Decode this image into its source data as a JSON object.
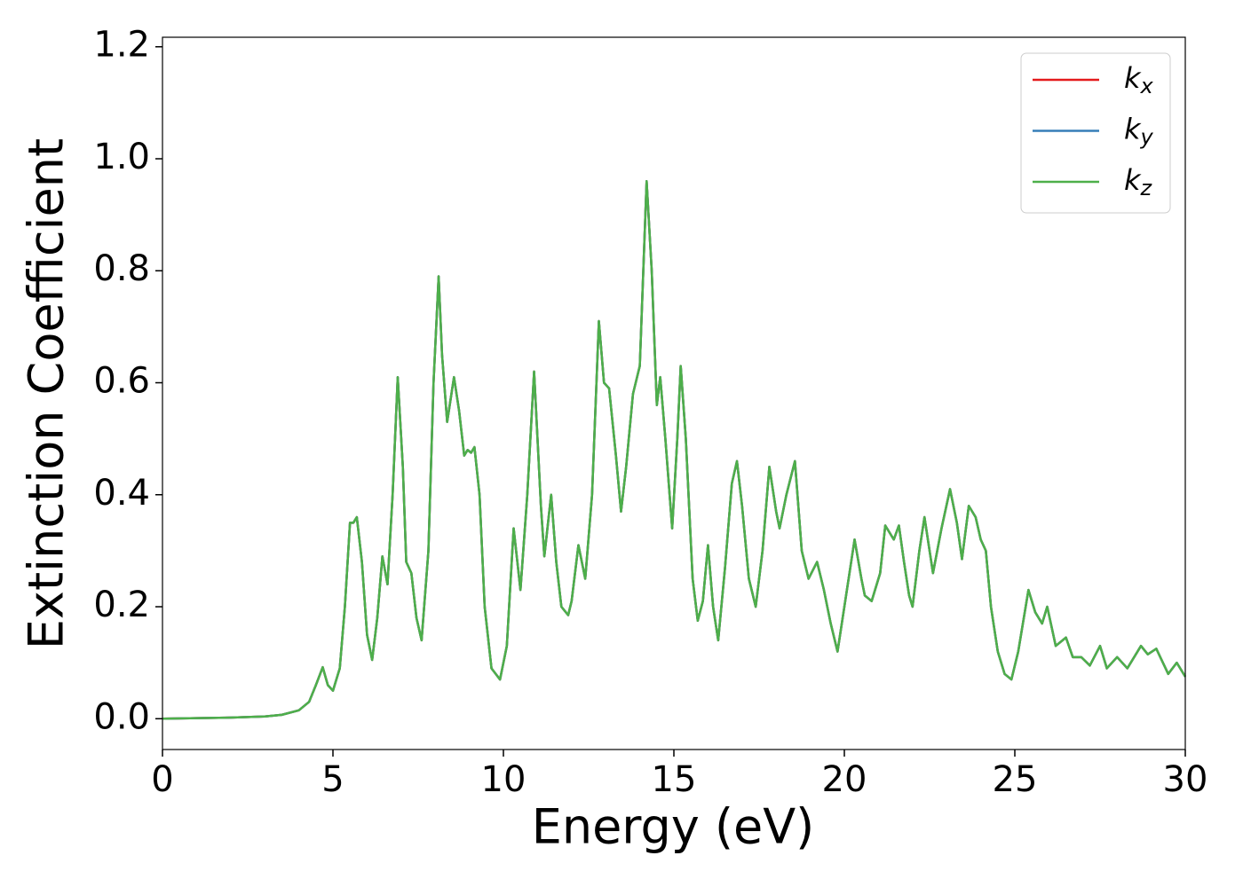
{
  "chart_data": {
    "type": "line",
    "xlabel": "Energy (eV)",
    "ylabel": "Extinction Coefficient",
    "x": [
      0,
      1,
      2,
      3,
      3.5,
      4.0,
      4.3,
      4.5,
      4.7,
      4.85,
      5.0,
      5.2,
      5.35,
      5.5,
      5.6,
      5.7,
      5.85,
      6.0,
      6.15,
      6.3,
      6.45,
      6.6,
      6.75,
      6.9,
      7.05,
      7.15,
      7.3,
      7.45,
      7.6,
      7.8,
      7.95,
      8.1,
      8.2,
      8.35,
      8.55,
      8.7,
      8.85,
      8.95,
      9.05,
      9.15,
      9.3,
      9.45,
      9.65,
      9.9,
      10.1,
      10.3,
      10.5,
      10.7,
      10.9,
      11.1,
      11.2,
      11.4,
      11.55,
      11.7,
      11.9,
      12.0,
      12.2,
      12.4,
      12.6,
      12.8,
      12.95,
      13.1,
      13.3,
      13.45,
      13.6,
      13.8,
      14.0,
      14.2,
      14.35,
      14.5,
      14.6,
      14.75,
      14.95,
      15.1,
      15.2,
      15.35,
      15.55,
      15.7,
      15.85,
      16.0,
      16.15,
      16.3,
      16.5,
      16.7,
      16.85,
      17.0,
      17.2,
      17.4,
      17.6,
      17.8,
      18.0,
      18.1,
      18.3,
      18.55,
      18.75,
      18.95,
      19.2,
      19.4,
      19.6,
      19.8,
      20.0,
      20.3,
      20.5,
      20.6,
      20.8,
      21.05,
      21.2,
      21.45,
      21.6,
      21.75,
      21.9,
      22.0,
      22.2,
      22.35,
      22.5,
      22.6,
      22.85,
      23.1,
      23.3,
      23.45,
      23.65,
      23.85,
      24.0,
      24.15,
      24.3,
      24.5,
      24.7,
      24.9,
      25.1,
      25.4,
      25.6,
      25.8,
      25.95,
      26.2,
      26.5,
      26.7,
      26.95,
      27.2,
      27.5,
      27.7,
      28.0,
      28.3,
      28.7,
      28.9,
      29.15,
      29.5,
      29.75,
      30.0
    ],
    "series": [
      {
        "name": "kx",
        "color": "#e41a1c",
        "values": [
          0,
          0.001,
          0.002,
          0.004,
          0.007,
          0.015,
          0.03,
          0.06,
          0.092,
          0.06,
          0.05,
          0.09,
          0.2,
          0.35,
          0.35,
          0.36,
          0.28,
          0.15,
          0.105,
          0.18,
          0.29,
          0.24,
          0.4,
          0.61,
          0.45,
          0.28,
          0.26,
          0.18,
          0.14,
          0.3,
          0.6,
          0.79,
          0.65,
          0.53,
          0.61,
          0.55,
          0.47,
          0.48,
          0.475,
          0.485,
          0.4,
          0.2,
          0.09,
          0.07,
          0.13,
          0.34,
          0.23,
          0.4,
          0.62,
          0.38,
          0.29,
          0.4,
          0.28,
          0.2,
          0.185,
          0.21,
          0.31,
          0.25,
          0.4,
          0.71,
          0.6,
          0.59,
          0.47,
          0.37,
          0.45,
          0.58,
          0.63,
          0.96,
          0.8,
          0.56,
          0.61,
          0.5,
          0.34,
          0.5,
          0.63,
          0.5,
          0.25,
          0.175,
          0.21,
          0.31,
          0.2,
          0.14,
          0.27,
          0.42,
          0.46,
          0.38,
          0.25,
          0.2,
          0.3,
          0.45,
          0.37,
          0.34,
          0.4,
          0.46,
          0.3,
          0.25,
          0.28,
          0.23,
          0.17,
          0.12,
          0.2,
          0.32,
          0.25,
          0.22,
          0.21,
          0.26,
          0.345,
          0.32,
          0.345,
          0.28,
          0.22,
          0.2,
          0.3,
          0.36,
          0.3,
          0.26,
          0.34,
          0.41,
          0.35,
          0.285,
          0.38,
          0.36,
          0.32,
          0.3,
          0.2,
          0.12,
          0.08,
          0.07,
          0.12,
          0.23,
          0.19,
          0.17,
          0.2,
          0.13,
          0.145,
          0.11,
          0.11,
          0.095,
          0.13,
          0.09,
          0.11,
          0.09,
          0.13,
          0.115,
          0.125,
          0.08,
          0.1,
          0.075
        ]
      },
      {
        "name": "ky",
        "color": "#377eb8",
        "values": [
          0,
          0.001,
          0.002,
          0.004,
          0.007,
          0.015,
          0.03,
          0.06,
          0.092,
          0.06,
          0.05,
          0.09,
          0.2,
          0.35,
          0.35,
          0.36,
          0.28,
          0.15,
          0.105,
          0.18,
          0.29,
          0.24,
          0.4,
          0.61,
          0.45,
          0.28,
          0.26,
          0.18,
          0.14,
          0.3,
          0.6,
          0.79,
          0.65,
          0.53,
          0.61,
          0.55,
          0.47,
          0.48,
          0.475,
          0.485,
          0.4,
          0.2,
          0.09,
          0.07,
          0.13,
          0.34,
          0.23,
          0.4,
          0.62,
          0.38,
          0.29,
          0.4,
          0.28,
          0.2,
          0.185,
          0.21,
          0.31,
          0.25,
          0.4,
          0.71,
          0.6,
          0.59,
          0.47,
          0.37,
          0.45,
          0.58,
          0.63,
          0.96,
          0.8,
          0.56,
          0.61,
          0.5,
          0.34,
          0.5,
          0.63,
          0.5,
          0.25,
          0.175,
          0.21,
          0.31,
          0.2,
          0.14,
          0.27,
          0.42,
          0.46,
          0.38,
          0.25,
          0.2,
          0.3,
          0.45,
          0.37,
          0.34,
          0.4,
          0.46,
          0.3,
          0.25,
          0.28,
          0.23,
          0.17,
          0.12,
          0.2,
          0.32,
          0.25,
          0.22,
          0.21,
          0.26,
          0.345,
          0.32,
          0.345,
          0.28,
          0.22,
          0.2,
          0.3,
          0.36,
          0.3,
          0.26,
          0.34,
          0.41,
          0.35,
          0.285,
          0.38,
          0.36,
          0.32,
          0.3,
          0.2,
          0.12,
          0.08,
          0.07,
          0.12,
          0.23,
          0.19,
          0.17,
          0.2,
          0.13,
          0.145,
          0.11,
          0.11,
          0.095,
          0.13,
          0.09,
          0.11,
          0.09,
          0.13,
          0.115,
          0.125,
          0.08,
          0.1,
          0.075
        ]
      },
      {
        "name": "kz",
        "color": "#4daf4a",
        "values": [
          0,
          0.001,
          0.002,
          0.004,
          0.007,
          0.015,
          0.03,
          0.06,
          0.092,
          0.06,
          0.05,
          0.09,
          0.2,
          0.35,
          0.35,
          0.36,
          0.28,
          0.15,
          0.105,
          0.18,
          0.29,
          0.24,
          0.4,
          0.61,
          0.45,
          0.28,
          0.26,
          0.18,
          0.14,
          0.3,
          0.6,
          0.79,
          0.65,
          0.53,
          0.61,
          0.55,
          0.47,
          0.48,
          0.475,
          0.485,
          0.4,
          0.2,
          0.09,
          0.07,
          0.13,
          0.34,
          0.23,
          0.4,
          0.62,
          0.38,
          0.29,
          0.4,
          0.28,
          0.2,
          0.185,
          0.21,
          0.31,
          0.25,
          0.4,
          0.71,
          0.6,
          0.59,
          0.47,
          0.37,
          0.45,
          0.58,
          0.63,
          0.96,
          0.8,
          0.56,
          0.61,
          0.5,
          0.34,
          0.5,
          0.63,
          0.5,
          0.25,
          0.175,
          0.21,
          0.31,
          0.2,
          0.14,
          0.27,
          0.42,
          0.46,
          0.38,
          0.25,
          0.2,
          0.3,
          0.45,
          0.37,
          0.34,
          0.4,
          0.46,
          0.3,
          0.25,
          0.28,
          0.23,
          0.17,
          0.12,
          0.2,
          0.32,
          0.25,
          0.22,
          0.21,
          0.26,
          0.345,
          0.32,
          0.345,
          0.28,
          0.22,
          0.2,
          0.3,
          0.36,
          0.3,
          0.26,
          0.34,
          0.41,
          0.35,
          0.285,
          0.38,
          0.36,
          0.32,
          0.3,
          0.2,
          0.12,
          0.08,
          0.07,
          0.12,
          0.23,
          0.19,
          0.17,
          0.2,
          0.13,
          0.145,
          0.11,
          0.11,
          0.095,
          0.13,
          0.09,
          0.11,
          0.09,
          0.13,
          0.115,
          0.125,
          0.08,
          0.1,
          0.075
        ]
      }
    ],
    "xlim": [
      0,
      30
    ],
    "xticks": [
      0,
      5,
      10,
      15,
      20,
      25,
      30
    ],
    "ylim": [
      -0.055,
      1.217
    ],
    "yticks": [
      {
        "value": 0,
        "label": "0.0"
      },
      0.2,
      0.4,
      0.6,
      0.8,
      {
        "value": 1,
        "label": "1.0"
      },
      1.2
    ],
    "legend": "upper right"
  }
}
